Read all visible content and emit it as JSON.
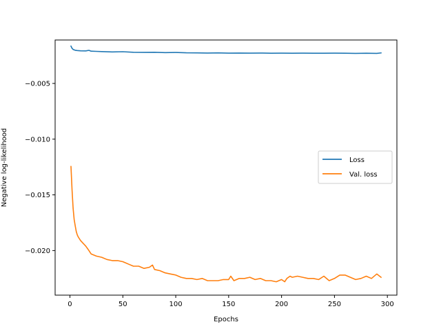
{
  "chart_data": {
    "type": "line",
    "xlabel": "Epochs",
    "ylabel": "Negative log-likelihood",
    "xlim": [
      -14,
      309
    ],
    "ylim": [
      -0.024,
      -0.0011
    ],
    "x_ticks": [
      0,
      50,
      100,
      150,
      200,
      250,
      300
    ],
    "x_tick_labels": [
      "0",
      "50",
      "100",
      "150",
      "200",
      "250",
      "300"
    ],
    "y_ticks": [
      -0.02,
      -0.015,
      -0.01,
      -0.005
    ],
    "y_tick_labels": [
      "−0.020",
      "−0.015",
      "−0.010",
      "−0.005"
    ],
    "grid": false,
    "legend_position": "center-right",
    "series": [
      {
        "name": "Loss",
        "color": "#1f77b4",
        "x": [
          1,
          2,
          3,
          5,
          7,
          10,
          15,
          18,
          20,
          25,
          30,
          40,
          50,
          60,
          70,
          80,
          90,
          100,
          110,
          120,
          130,
          140,
          150,
          160,
          170,
          180,
          190,
          200,
          210,
          220,
          230,
          240,
          250,
          260,
          270,
          280,
          290,
          294
        ],
        "y": [
          -0.00165,
          -0.00185,
          -0.00195,
          -0.00202,
          -0.00205,
          -0.00207,
          -0.00208,
          -0.00203,
          -0.0021,
          -0.00212,
          -0.00214,
          -0.00217,
          -0.00215,
          -0.0022,
          -0.00221,
          -0.0022,
          -0.00223,
          -0.00222,
          -0.00225,
          -0.00226,
          -0.00227,
          -0.00226,
          -0.00228,
          -0.00227,
          -0.00228,
          -0.00227,
          -0.00229,
          -0.00228,
          -0.00229,
          -0.00228,
          -0.00229,
          -0.00229,
          -0.00228,
          -0.00229,
          -0.0023,
          -0.00229,
          -0.0023,
          -0.00226
        ]
      },
      {
        "name": "Val. loss",
        "color": "#ff7f0e",
        "x": [
          1,
          2,
          3,
          4,
          5,
          6,
          7,
          8,
          10,
          12,
          15,
          18,
          20,
          25,
          30,
          35,
          40,
          45,
          50,
          55,
          60,
          65,
          70,
          75,
          78,
          80,
          85,
          90,
          95,
          100,
          105,
          110,
          115,
          120,
          125,
          130,
          135,
          140,
          145,
          150,
          152,
          155,
          160,
          165,
          170,
          175,
          180,
          185,
          190,
          195,
          200,
          203,
          205,
          208,
          210,
          215,
          220,
          225,
          230,
          235,
          240,
          245,
          250,
          255,
          260,
          265,
          270,
          275,
          280,
          285,
          290,
          294
        ],
        "y": [
          -0.01245,
          -0.0146,
          -0.0162,
          -0.0172,
          -0.0178,
          -0.0183,
          -0.0186,
          -0.0188,
          -0.0191,
          -0.0193,
          -0.0196,
          -0.02,
          -0.0203,
          -0.0205,
          -0.0206,
          -0.0208,
          -0.0209,
          -0.0209,
          -0.021,
          -0.0212,
          -0.0214,
          -0.0214,
          -0.0216,
          -0.0215,
          -0.0213,
          -0.0217,
          -0.0218,
          -0.022,
          -0.0221,
          -0.0222,
          -0.0224,
          -0.0225,
          -0.0225,
          -0.0226,
          -0.0225,
          -0.0227,
          -0.0227,
          -0.0227,
          -0.0226,
          -0.0226,
          -0.0223,
          -0.0227,
          -0.0225,
          -0.0225,
          -0.0224,
          -0.0226,
          -0.0225,
          -0.0227,
          -0.0227,
          -0.0228,
          -0.0226,
          -0.0228,
          -0.0225,
          -0.0223,
          -0.0224,
          -0.0223,
          -0.0224,
          -0.0225,
          -0.0225,
          -0.0226,
          -0.0223,
          -0.0227,
          -0.0225,
          -0.0222,
          -0.0222,
          -0.0224,
          -0.0226,
          -0.0225,
          -0.0223,
          -0.0225,
          -0.0221,
          -0.0224
        ]
      }
    ]
  }
}
